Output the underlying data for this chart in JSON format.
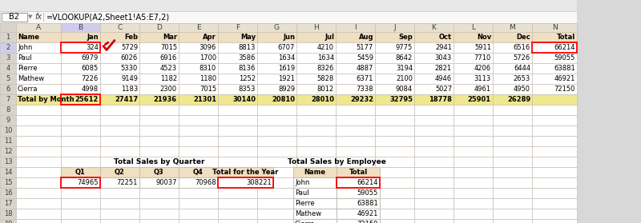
{
  "formula_bar_cell": "B2",
  "formula_bar_formula": "=VLOOKUP(A2,Sheet1!A5:E7,2)",
  "header_row": [
    "Name",
    "Jan",
    "Feb",
    "Mar",
    "Apr",
    "May",
    "Jun",
    "Jul",
    "Aug",
    "Sep",
    "Oct",
    "Nov",
    "Dec",
    "Total"
  ],
  "data_rows": [
    [
      "John",
      324,
      5729,
      7015,
      3096,
      8813,
      6707,
      4210,
      5177,
      9775,
      2941,
      5911,
      6516,
      66214
    ],
    [
      "Paul",
      6979,
      6026,
      6916,
      1700,
      3586,
      1634,
      1634,
      5459,
      8642,
      3043,
      7710,
      5726,
      59055
    ],
    [
      "Pierre",
      6085,
      5330,
      4523,
      8310,
      8136,
      1619,
      8326,
      4887,
      3194,
      2821,
      4206,
      6444,
      63881
    ],
    [
      "Mathew",
      7226,
      9149,
      1182,
      1180,
      1252,
      1921,
      5828,
      6371,
      2100,
      4946,
      3113,
      2653,
      46921
    ],
    [
      "Cierra",
      4998,
      1183,
      2300,
      7015,
      8353,
      8929,
      8012,
      7338,
      9084,
      5027,
      4961,
      4950,
      72150
    ]
  ],
  "total_row_label": "Total by Month",
  "total_row_values": [
    25612,
    27417,
    21936,
    21301,
    30140,
    20810,
    28010,
    29232,
    32795,
    18778,
    25901,
    26289,
    ""
  ],
  "quarter_title": "Total Sales by Quarter",
  "quarter_headers": [
    "Q1",
    "Q2",
    "Q3",
    "Q4",
    "Total for the Year"
  ],
  "quarter_values": [
    74965,
    72251,
    90037,
    70968,
    308221
  ],
  "employee_title": "Total Sales by Employee",
  "employee_headers": [
    "Name",
    "Total"
  ],
  "employee_values": [
    [
      "John",
      66214
    ],
    [
      "Paul",
      59055
    ],
    [
      "Pierre",
      63881
    ],
    [
      "Mathew",
      46921
    ],
    [
      "Cierra",
      72150
    ]
  ],
  "header_bg": "#F0DFC0",
  "total_row_bg": "#F0E890",
  "white_bg": "#FFFFFF",
  "col_header_bg": "#E8E0D0",
  "row_num_bg": "#F0EDE8",
  "selected_col_bg": "#E0D8F8",
  "selected_row_bg": "#E8E8F8",
  "grid_color": "#C8C0B8",
  "formula_bar_bg": "#F8F8F8",
  "top_bar_bg": "#E8E8E8"
}
